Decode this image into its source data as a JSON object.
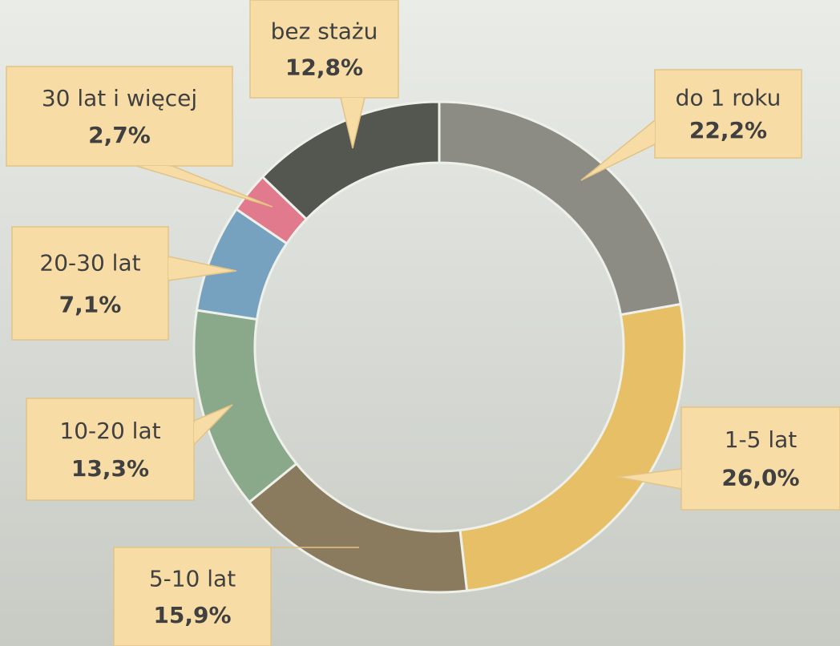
{
  "chart_data": {
    "type": "donut",
    "categories": [
      "do 1 roku",
      "1-5 lat",
      "5-10 lat",
      "10-20 lat",
      "20-30 lat",
      "30 lat i więcej",
      "bez stażu"
    ],
    "values": [
      22.2,
      26.0,
      15.9,
      13.3,
      7.1,
      2.7,
      12.8
    ],
    "value_labels": [
      "22,2%",
      "26,0%",
      "15,9%",
      "13,3%",
      "7,1%",
      "2,7%",
      "12,8%"
    ],
    "colors": [
      "#8c8b84",
      "#e6bf66",
      "#8a7a5e",
      "#8aa88a",
      "#76a2c0",
      "#e07a8c",
      "#545650"
    ]
  }
}
